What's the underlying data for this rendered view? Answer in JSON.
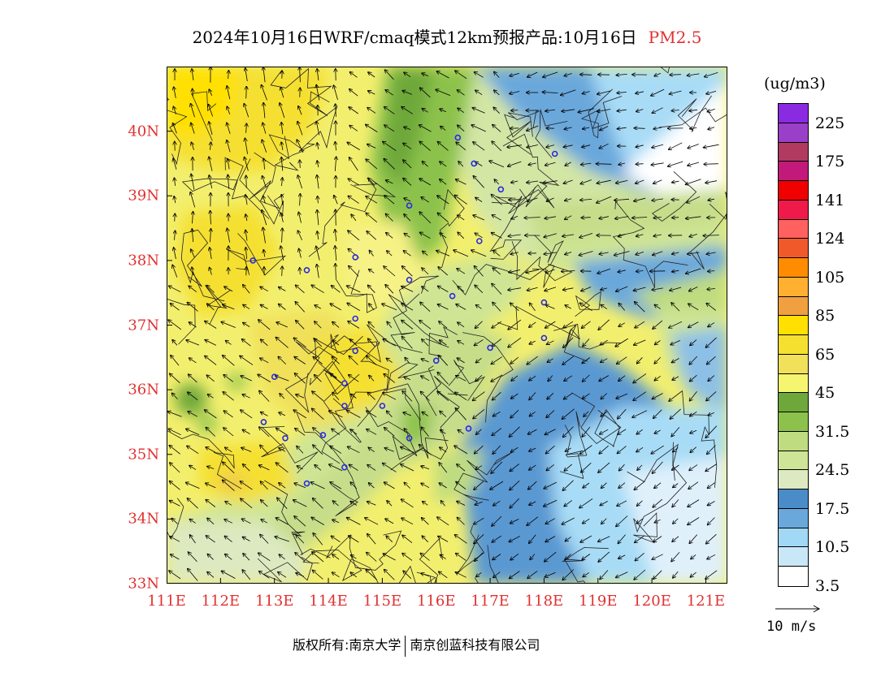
{
  "title": {
    "main": "2024年10月16日WRF/cmaq模式12km预报产品:10月16日",
    "pollutant": "PM2.5"
  },
  "lat_labels": [
    "40N",
    "39N",
    "38N",
    "37N",
    "36N",
    "35N",
    "34N",
    "33N"
  ],
  "lon_labels": [
    "111E",
    "112E",
    "113E",
    "114E",
    "115E",
    "116E",
    "117E",
    "118E",
    "119E",
    "120E",
    "121E"
  ],
  "legend": {
    "unit": "(ug/m3)",
    "labels": [
      "225",
      "175",
      "141",
      "124",
      "105",
      "85",
      "65",
      "45",
      "31.5",
      "24.5",
      "17.5",
      "10.5",
      "3.5"
    ],
    "colors": [
      "#8a2be2",
      "#9a3fc8",
      "#b03a60",
      "#c21a7a",
      "#f00000",
      "#f01a4a",
      "#ff6060",
      "#f05a2a",
      "#ff8c00",
      "#ffb030",
      "#f0a040",
      "#ffe000",
      "#f5e030",
      "#f0e05a",
      "#f5f570",
      "#6ea83a",
      "#8cc24c",
      "#bfdc80",
      "#cee496",
      "#dde9c0",
      "#4a8cc8",
      "#6aa8dc",
      "#a0d8f5",
      "#c8e8f8",
      "#ffffff"
    ]
  },
  "wind_reference": {
    "label": "10 m/s"
  },
  "copyright": {
    "owner_label": "版权所有:南京大学",
    "company": "南京创蓝科技有限公司"
  },
  "map": {
    "lon_range": [
      111,
      121.4
    ],
    "lat_range": [
      33,
      41
    ],
    "station_markers": true
  }
}
